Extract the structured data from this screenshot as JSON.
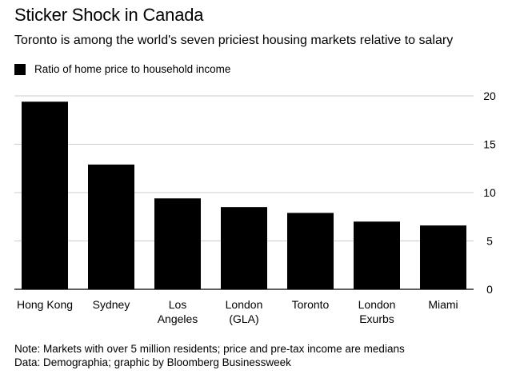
{
  "header": {
    "title": "Sticker Shock in Canada",
    "subtitle": "Toronto is among the world's seven priciest housing markets relative to salary"
  },
  "legend": {
    "label": "Ratio of home price to household income",
    "color": "#000000"
  },
  "chart_data": {
    "type": "bar",
    "title": "Sticker Shock in Canada",
    "subtitle": "Toronto is among the world's seven priciest housing markets relative to salary",
    "categories": [
      [
        "Hong Kong"
      ],
      [
        "Sydney"
      ],
      [
        "Los",
        "Angeles"
      ],
      [
        "London",
        "(GLA)"
      ],
      [
        "Toronto"
      ],
      [
        "London",
        "Exurbs"
      ],
      [
        "Miami"
      ]
    ],
    "series": [
      {
        "name": "Ratio of home price to household income",
        "color": "#000000",
        "values": [
          19.4,
          12.9,
          9.4,
          8.5,
          7.9,
          7.0,
          6.6
        ]
      }
    ],
    "ylim": [
      0,
      20
    ],
    "yticks": [
      0,
      5,
      10,
      15,
      20
    ],
    "y_axis_side": "right",
    "grid": true,
    "xlabel": "",
    "ylabel": ""
  },
  "footer": {
    "note": "Note: Markets with over 5 million residents; price and pre-tax income are medians",
    "source": "Data: Demographia; graphic by Bloomberg Businessweek"
  }
}
